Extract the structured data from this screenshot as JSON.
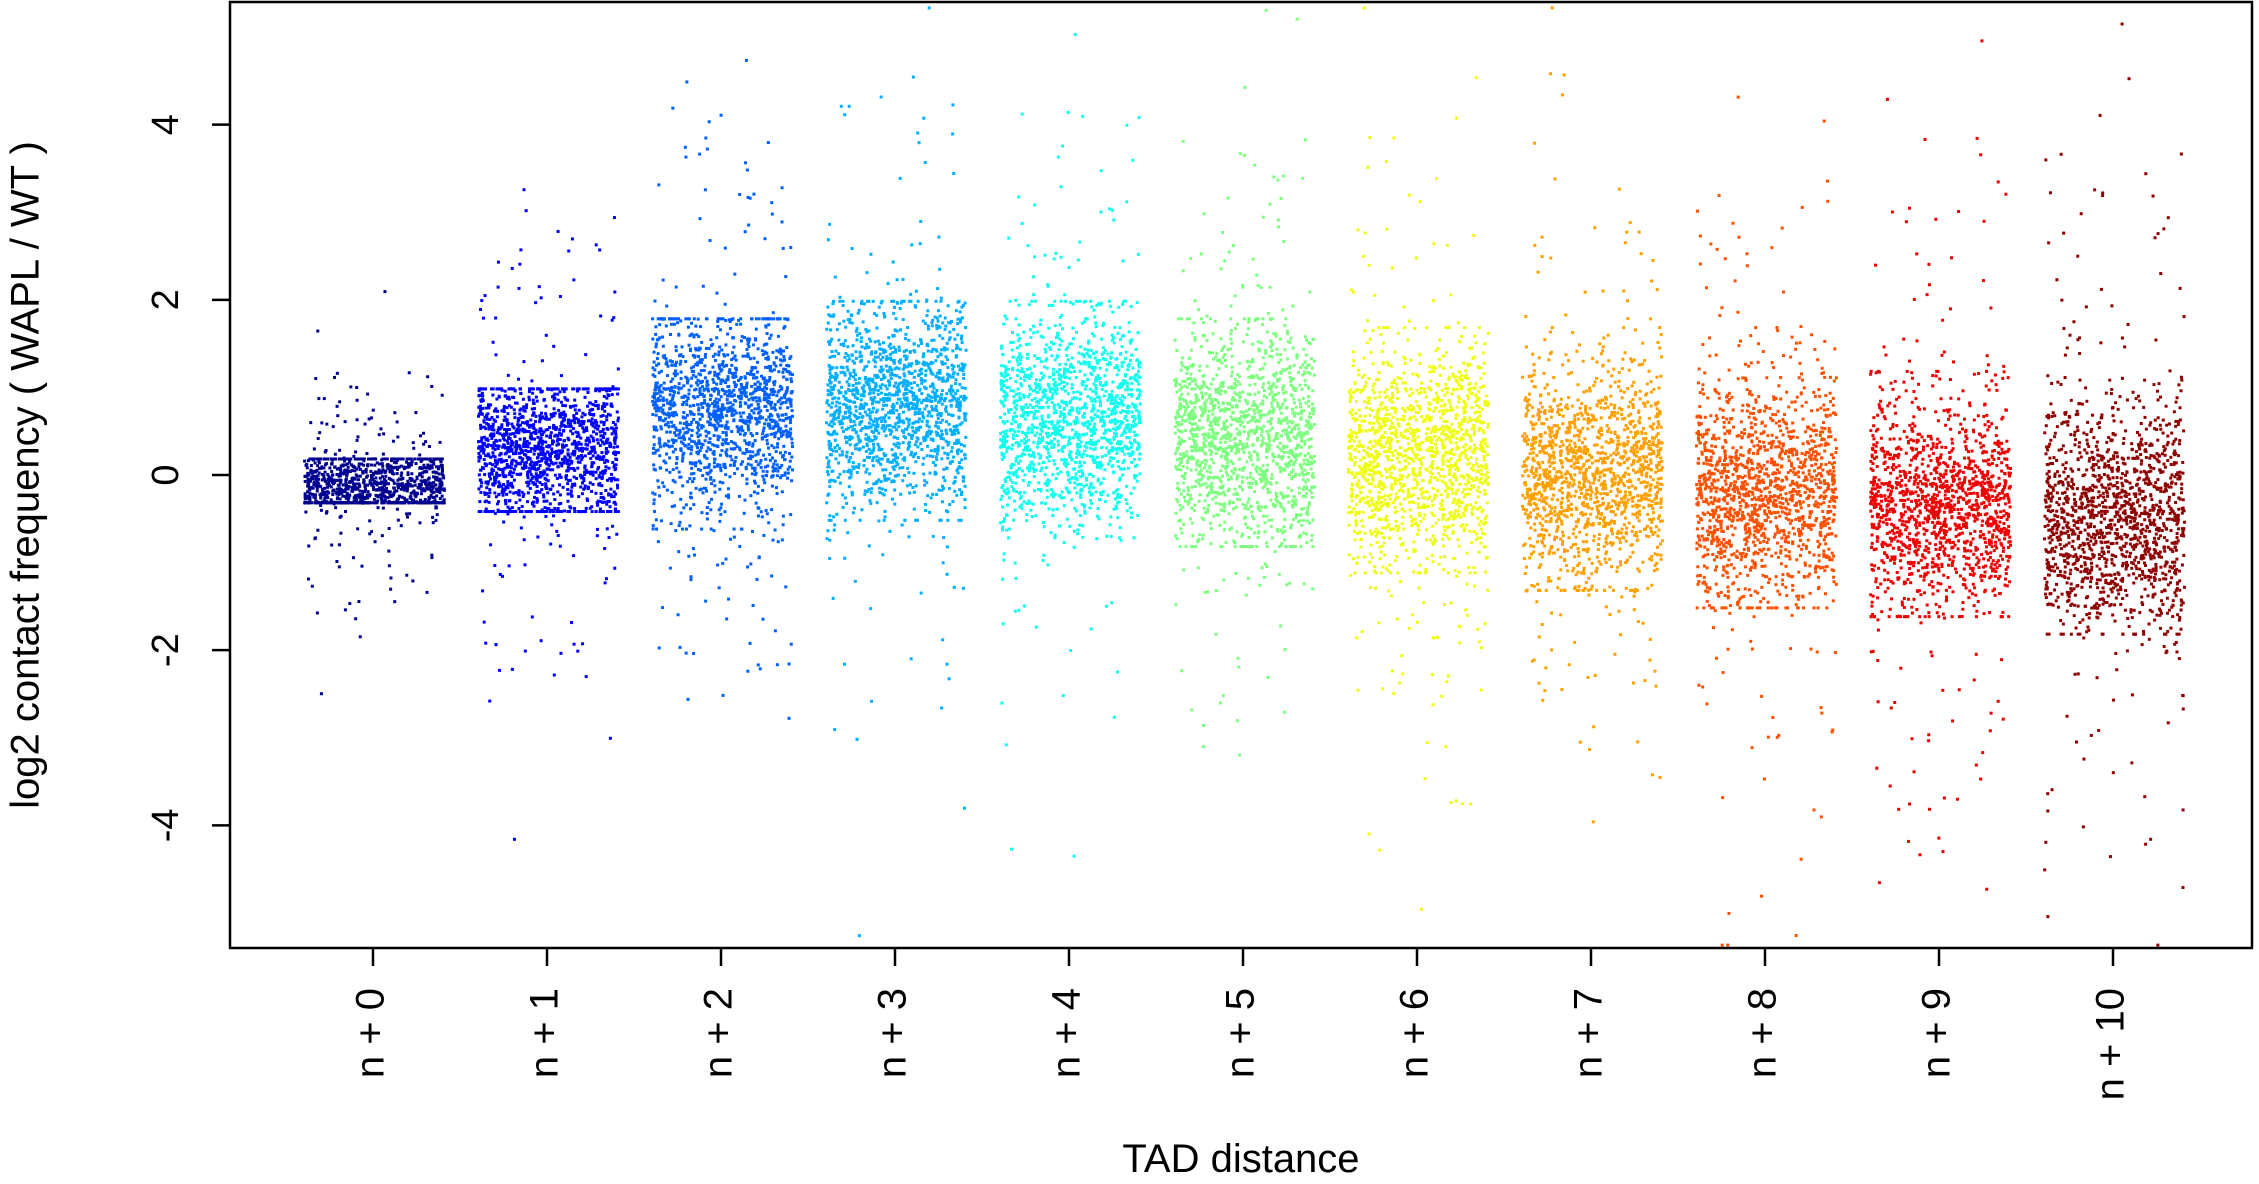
{
  "chart_data": {
    "type": "scatter",
    "title": "",
    "xlabel": "TAD distance",
    "ylabel": "log2 contact frequency ( WAPL / WT )",
    "ylim": [
      -5.4,
      5.4
    ],
    "yticks": [
      -4,
      -2,
      0,
      2,
      4
    ],
    "ytick_labels": [
      "-4",
      "-2",
      "0",
      "2",
      "4"
    ],
    "categories": [
      "n + 0",
      "n + 1",
      "n + 2",
      "n + 3",
      "n + 4",
      "n + 5",
      "n + 6",
      "n + 7",
      "n + 8",
      "n + 9",
      "n + 10"
    ],
    "grid": false,
    "legend": "none",
    "series": [
      {
        "category": "n + 0",
        "color": "#00008F",
        "median": -0.12,
        "q1": -0.25,
        "q3": 0.05,
        "core_min": -0.3,
        "core_max": 0.2
      },
      {
        "category": "n + 1",
        "color": "#0000FF",
        "median": 0.3,
        "q1": 0.0,
        "q3": 0.6,
        "core_min": -0.4,
        "core_max": 1.0
      },
      {
        "category": "n + 2",
        "color": "#0060FF",
        "median": 0.75,
        "q1": 0.35,
        "q3": 1.1,
        "core_min": -0.6,
        "core_max": 1.8
      },
      {
        "category": "n + 3",
        "color": "#00AFFF",
        "median": 0.8,
        "q1": 0.4,
        "q3": 1.15,
        "core_min": -0.5,
        "core_max": 2.0
      },
      {
        "category": "n + 4",
        "color": "#10FFEF",
        "median": 0.65,
        "q1": 0.25,
        "q3": 1.0,
        "core_min": -0.7,
        "core_max": 2.0
      },
      {
        "category": "n + 5",
        "color": "#7FFF80",
        "median": 0.45,
        "q1": 0.05,
        "q3": 0.85,
        "core_min": -0.8,
        "core_max": 1.8
      },
      {
        "category": "n + 6",
        "color": "#EFFF10",
        "median": 0.25,
        "q1": -0.15,
        "q3": 0.65,
        "core_min": -1.1,
        "core_max": 1.7
      },
      {
        "category": "n + 7",
        "color": "#FFA000",
        "median": 0.0,
        "q1": -0.4,
        "q3": 0.4,
        "core_min": -1.3,
        "core_max": 1.7
      },
      {
        "category": "n + 8",
        "color": "#FF5000",
        "median": -0.2,
        "q1": -0.6,
        "q3": 0.25,
        "core_min": -1.5,
        "core_max": 1.7
      },
      {
        "category": "n + 9",
        "color": "#EF0000",
        "median": -0.35,
        "q1": -0.75,
        "q3": 0.05,
        "core_min": -1.6,
        "core_max": 1.2
      },
      {
        "category": "n + 10",
        "color": "#8F0000",
        "median": -0.5,
        "q1": -0.9,
        "q3": -0.05,
        "core_min": -1.8,
        "core_max": 1.1
      }
    ]
  }
}
